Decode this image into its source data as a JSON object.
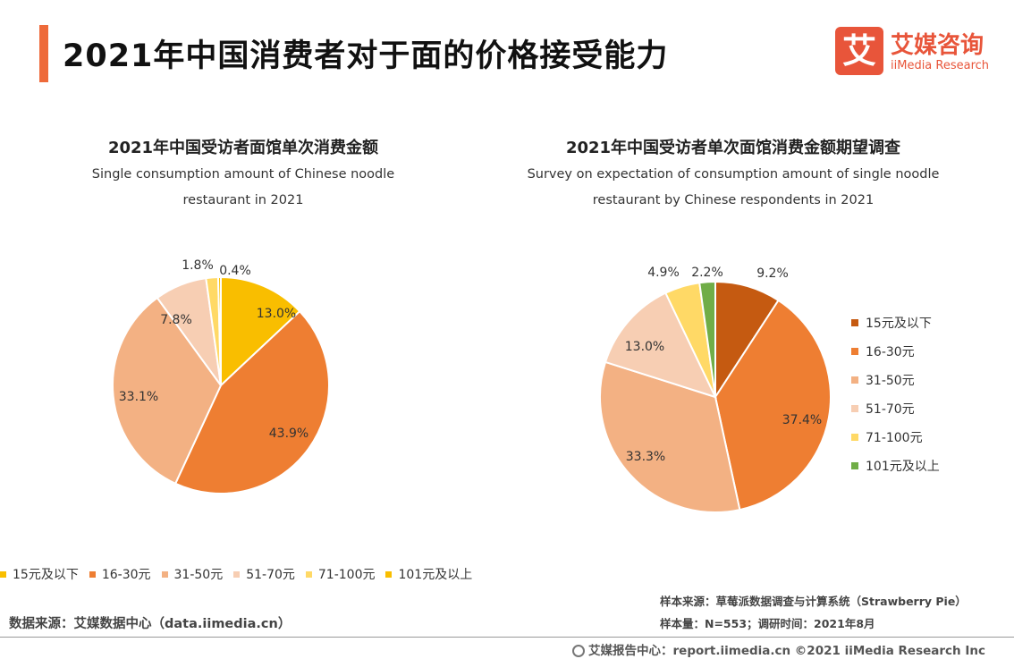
{
  "header": {
    "title": "2021年中国消费者对于面的价格接受能力",
    "logo_mark": "艾",
    "logo_cn": "艾媒咨询",
    "logo_en": "iiMedia Research"
  },
  "colors": {
    "accent": "#ee6a3a",
    "brand": "#e8553a"
  },
  "chart_data": [
    {
      "type": "pie",
      "title": "2021年中国受访者面馆单次消费金额",
      "subtitle_lines": [
        "Single consumption amount of Chinese noodle",
        "restaurant in 2021"
      ],
      "categories": [
        "15元及以下",
        "16-30元",
        "31-50元",
        "51-70元",
        "71-100元",
        "101元及以上"
      ],
      "values": [
        13.0,
        43.9,
        33.1,
        7.8,
        1.8,
        0.4
      ],
      "labels": [
        "13.0%",
        "43.9%",
        "33.1%",
        "7.8%",
        "1.8%",
        "0.4%"
      ],
      "colors": [
        "#f9be00",
        "#ee7e32",
        "#f3b183",
        "#f7ceb3",
        "#ffd966",
        "#f9be00"
      ],
      "legend_position": "bottom"
    },
    {
      "type": "pie",
      "title": "2021年中国受访者单次面馆消费金额期望调查",
      "subtitle_lines": [
        "Survey on expectation of consumption amount of single noodle",
        "restaurant by Chinese respondents in 2021"
      ],
      "categories": [
        "15元及以下",
        "16-30元",
        "31-50元",
        "51-70元",
        "71-100元",
        "101元及以上"
      ],
      "values": [
        9.2,
        37.4,
        33.3,
        13.0,
        4.9,
        2.2
      ],
      "labels": [
        "9.2%",
        "37.4%",
        "33.3%",
        "13.0%",
        "4.9%",
        "2.2%"
      ],
      "colors": [
        "#c55a11",
        "#ee7e32",
        "#f3b183",
        "#f7ceb3",
        "#ffd966",
        "#70ad47"
      ],
      "legend_position": "right"
    }
  ],
  "footer": {
    "source_left": "数据来源：艾媒数据中心（data.iimedia.cn）",
    "sample_source": "样本来源：草莓派数据调查与计算系统（Strawberry Pie）",
    "sample_size": "样本量：N=553；调研时间：2021年8月",
    "report": "艾媒报告中心：report.iimedia.cn ©2021  iiMedia Research  Inc"
  }
}
